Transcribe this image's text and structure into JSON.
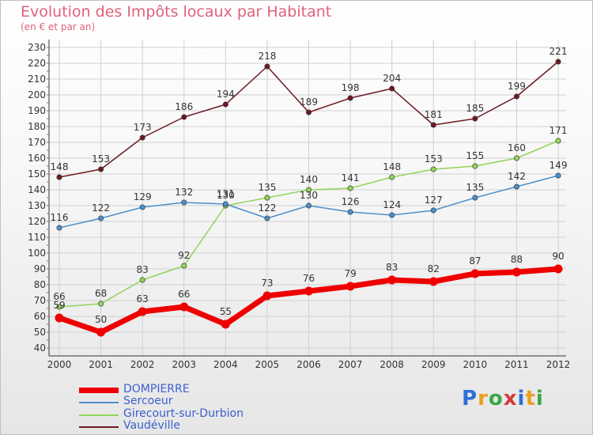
{
  "title": "Evolution des Impôts locaux par Habitant",
  "subtitle": "(en € et par an)",
  "logo": {
    "text": "Proxiti",
    "colors": [
      "#2f6fd6",
      "#e8a020",
      "#39a845",
      "#d63a3a",
      "#2f6fd6",
      "#e8a020",
      "#39a845"
    ]
  },
  "chart_data": {
    "type": "line",
    "x": [
      "2000",
      "2001",
      "2002",
      "2003",
      "2004",
      "2005",
      "2006",
      "2007",
      "2008",
      "2009",
      "2010",
      "2011",
      "2012"
    ],
    "ylim": [
      40,
      230
    ],
    "yticks": [
      40,
      50,
      60,
      70,
      80,
      90,
      100,
      110,
      120,
      130,
      140,
      150,
      160,
      170,
      180,
      190,
      200,
      210,
      220,
      230
    ],
    "grid": true,
    "legend_position": "bottom-left",
    "series": [
      {
        "name": "DOMPIERRE",
        "color": "#ee0000",
        "values": [
          59,
          50,
          63,
          66,
          55,
          73,
          76,
          79,
          83,
          82,
          87,
          88,
          90
        ]
      },
      {
        "name": "Sercoeur",
        "color": "#4d8fc8",
        "values": [
          116,
          122,
          129,
          132,
          131,
          122,
          130,
          126,
          124,
          127,
          135,
          142,
          149
        ]
      },
      {
        "name": "Girecourt-sur-Durbion",
        "color": "#93d35a",
        "values": [
          66,
          68,
          83,
          92,
          130,
          135,
          140,
          141,
          148,
          153,
          155,
          160,
          171
        ]
      },
      {
        "name": "Vaudéville",
        "color": "#6e1a22",
        "values": [
          148,
          153,
          173,
          186,
          194,
          218,
          189,
          198,
          204,
          181,
          185,
          199,
          221
        ]
      }
    ]
  }
}
